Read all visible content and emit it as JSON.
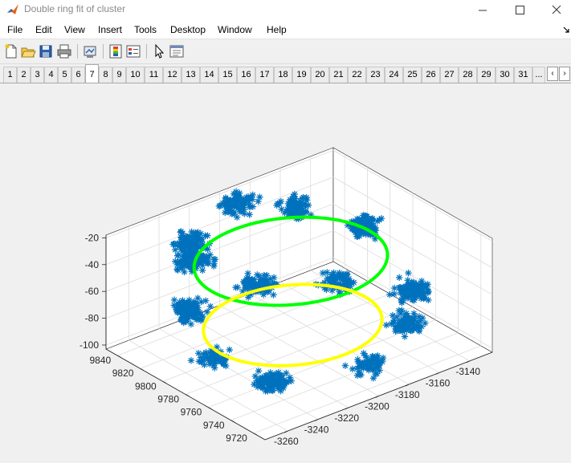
{
  "window": {
    "title": "Double ring fit of cluster",
    "icons": [
      "matlab-icon",
      "minimize-icon",
      "maximize-icon",
      "close-icon"
    ]
  },
  "menu": {
    "items": [
      "File",
      "Edit",
      "View",
      "Insert",
      "Tools",
      "Desktop",
      "Window",
      "Help"
    ]
  },
  "toolbar": {
    "tools": [
      "new-figure-icon",
      "open-file-icon",
      "save-icon",
      "print-icon",
      "link-plot-icon",
      "colorbar-icon",
      "legend-icon",
      "pointer-icon",
      "property-editor-icon"
    ]
  },
  "tabs": {
    "labels": [
      "1",
      "2",
      "3",
      "4",
      "5",
      "6",
      "7",
      "8",
      "9",
      "10",
      "11",
      "12",
      "13",
      "14",
      "15",
      "16",
      "17",
      "18",
      "19",
      "20",
      "21",
      "22",
      "23",
      "24",
      "25",
      "26",
      "27",
      "28",
      "29",
      "30",
      "31",
      "..."
    ],
    "selected": "7"
  },
  "chart_data": {
    "type": "scatter",
    "title": "",
    "x_ticks": [
      "-3260",
      "-3240",
      "-3220",
      "-3200",
      "-3180",
      "-3160",
      "-3140"
    ],
    "y_ticks": [
      "9720",
      "9740",
      "9760",
      "9780",
      "9800",
      "9820",
      "9840"
    ],
    "z_ticks": [
      "-100",
      "-80",
      "-60",
      "-40",
      "-20"
    ],
    "xlim": [
      -3275,
      -3125
    ],
    "ylim": [
      9710,
      9850
    ],
    "zlim": [
      -103,
      -18
    ],
    "grid": true,
    "marker_color": "#0072BD",
    "marker": "asterisk",
    "clusters": [
      {
        "x": -3258,
        "y": 9800,
        "z": -58,
        "n": 150
      },
      {
        "x": -3252,
        "y": 9805,
        "z": -25,
        "n": 120
      },
      {
        "x": -3230,
        "y": 9835,
        "z": -35,
        "n": 110
      },
      {
        "x": -3200,
        "y": 9835,
        "z": -20,
        "n": 100
      },
      {
        "x": -3165,
        "y": 9830,
        "z": -35,
        "n": 90
      },
      {
        "x": -3142,
        "y": 9800,
        "z": -45,
        "n": 120
      },
      {
        "x": -3140,
        "y": 9760,
        "z": -75,
        "n": 120
      },
      {
        "x": -3160,
        "y": 9740,
        "z": -80,
        "n": 90
      },
      {
        "x": -3195,
        "y": 9725,
        "z": -88,
        "n": 70
      },
      {
        "x": -3245,
        "y": 9745,
        "z": -90,
        "n": 110
      },
      {
        "x": -3260,
        "y": 9775,
        "z": -80,
        "n": 60
      },
      {
        "x": -3215,
        "y": 9795,
        "z": -55,
        "n": 100
      },
      {
        "x": -3175,
        "y": 9780,
        "z": -62,
        "n": 80
      }
    ],
    "rings": [
      {
        "color": "#00FF00",
        "center": [
          -3198,
          9790
        ],
        "radius": 52,
        "z": -42
      },
      {
        "color": "#FFFF00",
        "center": [
          -3208,
          9775
        ],
        "radius": 48,
        "z": -78
      }
    ]
  }
}
